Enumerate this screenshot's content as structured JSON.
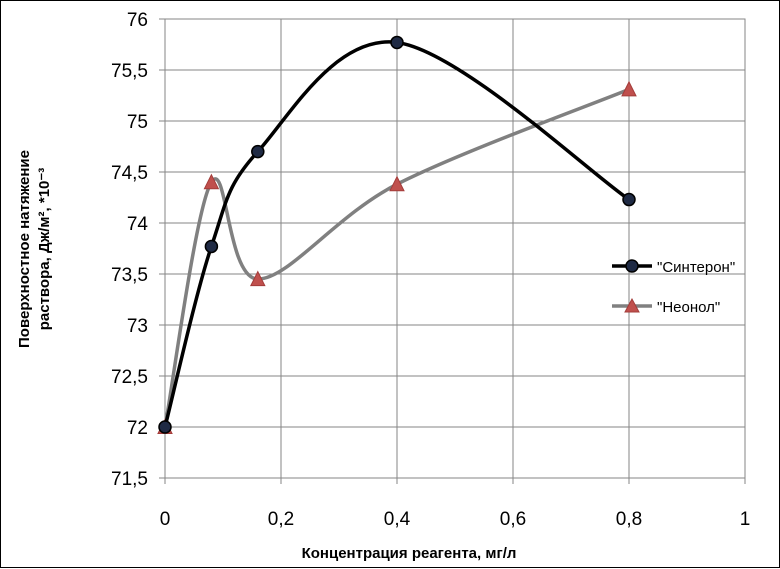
{
  "chart_data": {
    "type": "scatter",
    "xlabel": "Концентрация реагента, мг/л",
    "ylabel_line1": "Поверхностное натяжение",
    "ylabel_line2": "раствора, Дж/м², *10⁻³",
    "xlim": [
      0,
      1
    ],
    "ylim": [
      71.5,
      76
    ],
    "x_ticks": [
      0,
      0.2,
      0.4,
      0.6,
      0.8,
      1
    ],
    "x_tick_labels": [
      "0",
      "0,2",
      "0,4",
      "0,6",
      "0,8",
      "1"
    ],
    "y_ticks": [
      71.5,
      72,
      72.5,
      73,
      73.5,
      74,
      74.5,
      75,
      75.5,
      76
    ],
    "y_tick_labels": [
      "71,5",
      "72",
      "72,5",
      "73",
      "73,5",
      "74",
      "74,5",
      "75",
      "75,5",
      "76"
    ],
    "grid": true,
    "smoothed_lines": true,
    "legend_position": "right",
    "series": [
      {
        "name": "\"Синтерон\"",
        "color": "#000000",
        "marker": "circle",
        "marker_fill": "#1f2a44",
        "x": [
          0,
          0.08,
          0.16,
          0.4,
          0.8
        ],
        "y": [
          72.0,
          73.77,
          74.7,
          75.77,
          74.23
        ]
      },
      {
        "name": "\"Неонол\"",
        "color": "#808080",
        "marker": "triangle",
        "marker_fill": "#c0504d",
        "x": [
          0,
          0.08,
          0.16,
          0.4,
          0.8
        ],
        "y": [
          72.0,
          74.4,
          73.45,
          74.38,
          75.31
        ]
      }
    ]
  }
}
